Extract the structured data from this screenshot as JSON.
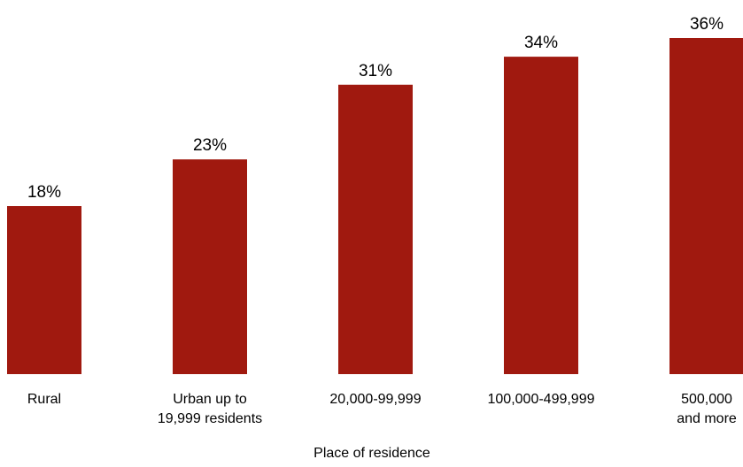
{
  "chart_data": {
    "type": "bar",
    "categories": [
      [
        "Rural"
      ],
      [
        "Urban up to",
        "19,999 residents"
      ],
      [
        "20,000-99,999"
      ],
      [
        "100,000-499,999"
      ],
      [
        "500,000",
        "and more"
      ]
    ],
    "values": [
      18,
      23,
      31,
      34,
      36
    ],
    "data_labels": [
      "18%",
      "23%",
      "31%",
      "34%",
      "36%"
    ],
    "title": "",
    "xlabel": "Place of residence",
    "ylabel": "",
    "ylim": [
      0,
      36
    ],
    "grid": false,
    "legend": "none",
    "bar_color": "#a0190f"
  }
}
